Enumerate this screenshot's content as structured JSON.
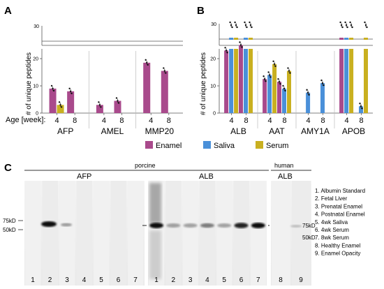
{
  "panels": {
    "a": "A",
    "b": "B",
    "c": "C"
  },
  "colors": {
    "enamel": "#a94a8c",
    "saliva": "#4a90d9",
    "serum": "#c9b020",
    "blot_band": "#111111"
  },
  "chart_data": [
    {
      "panel": "A",
      "type": "bar",
      "ylabel": "# of unique peptides",
      "ylim": [
        0,
        30
      ],
      "axis_break": true,
      "yticks": [
        "0",
        "10",
        "20",
        "30"
      ],
      "age_label": "Age [week]:",
      "groups": [
        "AFP",
        "AMEL",
        "MMP20"
      ],
      "ages": [
        "4",
        "8",
        "4",
        "8",
        "4",
        "8"
      ],
      "series": [
        {
          "name": "Enamel",
          "values": [
            9,
            8,
            3,
            4.5,
            18.5,
            15.5
          ]
        },
        {
          "name": "Serum",
          "values": [
            3,
            0,
            0,
            0,
            0,
            0
          ]
        }
      ]
    },
    {
      "panel": "B",
      "type": "bar",
      "ylabel": "# of unique peptides",
      "ylim": [
        0,
        30
      ],
      "axis_break": true,
      "yticks": [
        "0",
        "10",
        "20",
        "30"
      ],
      "groups": [
        "ALB",
        "AAT",
        "AMY1A",
        "APOB"
      ],
      "ages": [
        "4",
        "8",
        "4",
        "8",
        "4",
        "8",
        "4",
        "8"
      ],
      "series": [
        {
          "name": "Enamel",
          "values": [
            23,
            25,
            12.5,
            11.5,
            0,
            0,
            30,
            0
          ]
        },
        {
          "name": "Saliva",
          "values": [
            30,
            30,
            14,
            9,
            7.5,
            11,
            30,
            2.5
          ]
        },
        {
          "name": "Serum",
          "values": [
            30,
            30,
            18,
            15.5,
            0,
            0,
            30,
            30
          ]
        }
      ]
    }
  ],
  "legend": [
    "Enamel",
    "Saliva",
    "Serum"
  ],
  "blot": {
    "porcine_label": "porcine",
    "human_label": "human",
    "afp_label": "AFP",
    "alb_label": "ALB",
    "alb_human_label": "ALB",
    "left_markers": [
      "75kD",
      "50kD"
    ],
    "right_markers": [
      "75kD",
      "50kD"
    ],
    "lanes_afp": [
      "1",
      "2",
      "3",
      "4",
      "5",
      "6",
      "7"
    ],
    "lanes_alb": [
      "1",
      "2",
      "3",
      "4",
      "5",
      "6",
      "7"
    ],
    "lanes_human": [
      "8",
      "9"
    ],
    "key": [
      "1. Albumin Standard",
      "2. Fetal Liver",
      "3. Prenatal Enamel",
      "4. Postnatal Enamel",
      "5. 4wk Saliva",
      "6. 4wk Serum",
      "7. 8wk Serum",
      "8. Healthy Enamel",
      "9. Enamel Opacity"
    ]
  }
}
